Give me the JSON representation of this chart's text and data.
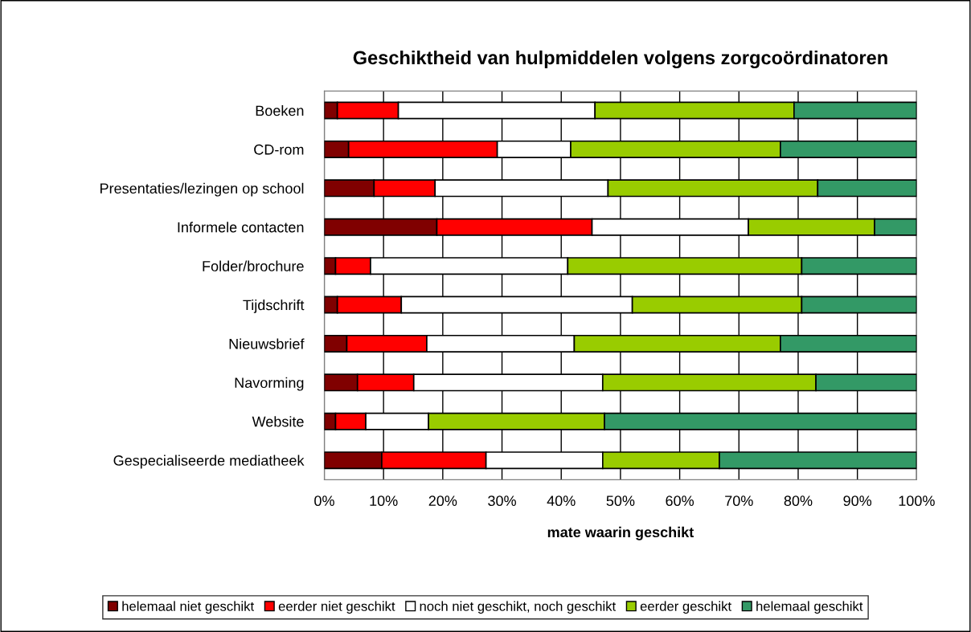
{
  "chart_data": {
    "type": "bar",
    "orientation": "horizontal",
    "stacked": true,
    "title": "Geschiktheid van hulpmiddelen volgens zorgcoördinatoren",
    "xlabel": "mate waarin geschikt",
    "categories": [
      "Boeken",
      "CD-rom",
      "Presentaties/lezingen op school",
      "Informele contacten",
      "Folder/brochure",
      "Tijdschrift",
      "Nieuwsbrief",
      "Navorming",
      "Website",
      "Gespecialiseerde mediatheek"
    ],
    "series": [
      {
        "name": "helemaal niet geschikt",
        "color": "#800000",
        "values": [
          2.2,
          4.1,
          8.4,
          19.0,
          1.9,
          2.2,
          3.8,
          5.6,
          1.9,
          9.7
        ]
      },
      {
        "name": "eerder niet geschikt",
        "color": "#ff0000",
        "values": [
          10.3,
          25.1,
          10.3,
          26.2,
          5.9,
          10.8,
          13.5,
          9.5,
          5.1,
          17.6
        ]
      },
      {
        "name": "noch niet geschikt, noch geschikt",
        "color": "#ffffff",
        "values": [
          33.2,
          12.4,
          29.2,
          26.4,
          33.3,
          39.0,
          24.9,
          31.9,
          10.6,
          19.7
        ]
      },
      {
        "name": "eerder geschikt",
        "color": "#99cc00",
        "values": [
          33.6,
          35.4,
          35.4,
          21.3,
          39.5,
          28.6,
          34.8,
          36.0,
          29.7,
          19.7
        ]
      },
      {
        "name": "helemaal geschikt",
        "color": "#339966",
        "values": [
          20.7,
          23.0,
          16.7,
          7.1,
          19.4,
          19.4,
          23.0,
          17.0,
          52.7,
          33.3
        ]
      }
    ],
    "xlim": [
      0,
      100
    ],
    "xticks": [
      {
        "value": 0,
        "label": "0%"
      },
      {
        "value": 10,
        "label": "10%"
      },
      {
        "value": 20,
        "label": "20%"
      },
      {
        "value": 30,
        "label": "30%"
      },
      {
        "value": 40,
        "label": "40%"
      },
      {
        "value": 50,
        "label": "50%"
      },
      {
        "value": 60,
        "label": "60%"
      },
      {
        "value": 70,
        "label": "70%"
      },
      {
        "value": 80,
        "label": "80%"
      },
      {
        "value": 90,
        "label": "90%"
      },
      {
        "value": 100,
        "label": "100%"
      }
    ],
    "grid": "x",
    "legend": "bottom"
  }
}
